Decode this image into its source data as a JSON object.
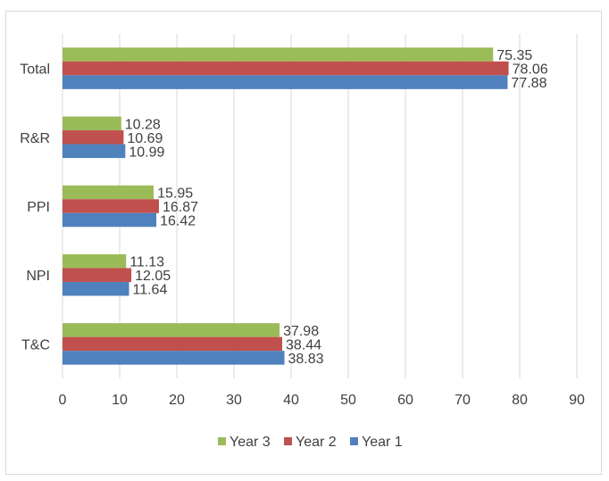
{
  "chart_data": {
    "type": "bar",
    "orientation": "horizontal",
    "categories": [
      "Total",
      "R&R",
      "PPI",
      "NPI",
      "T&C"
    ],
    "series": [
      {
        "name": "Year 3",
        "color": "#9bbb59",
        "values": [
          75.35,
          10.28,
          15.95,
          11.13,
          37.98
        ],
        "labels": [
          "75.35",
          "10.28",
          "15.95",
          "11.13",
          "37.98"
        ]
      },
      {
        "name": "Year 2",
        "color": "#c0504d",
        "values": [
          78.06,
          10.69,
          16.87,
          12.05,
          38.44
        ],
        "labels": [
          "78.06",
          "10.69",
          "16.87",
          "12.05",
          "38.44"
        ]
      },
      {
        "name": "Year 1",
        "color": "#4f81bd",
        "values": [
          77.88,
          10.99,
          16.42,
          11.64,
          38.83
        ],
        "labels": [
          "77.88",
          "10.99",
          "16.42",
          "11.64",
          "38.83"
        ]
      }
    ],
    "legend_order": [
      "Year 3",
      "Year 2",
      "Year 1"
    ],
    "xlim": [
      0,
      90
    ],
    "xticks": [
      0,
      10,
      20,
      30,
      40,
      50,
      60,
      70,
      80,
      90
    ],
    "xtick_labels": [
      "0",
      "10",
      "20",
      "30",
      "40",
      "50",
      "60",
      "70",
      "80",
      "90"
    ],
    "grid": true,
    "legend_position": "bottom",
    "gridline_color": "#d9d9d9"
  }
}
